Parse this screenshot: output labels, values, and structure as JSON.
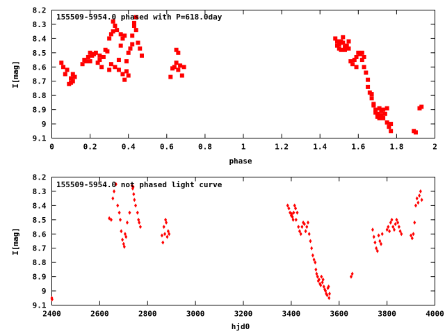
{
  "colors": {
    "points": "#ff0000",
    "axes": "#000000",
    "background": "#ffffff"
  },
  "chart_data": [
    {
      "type": "scatter",
      "title": "155509-5954.0 phased with P=618.0day",
      "xlabel": "phase",
      "ylabel": "I[mag]",
      "xlim": [
        0,
        2
      ],
      "ylim": [
        8.2,
        9.1
      ],
      "y_inverted": true,
      "marker": "filled-square",
      "x_ticks": [
        "0",
        "0.2",
        "0.4",
        "0.6",
        "0.8",
        "1",
        "1.2",
        "1.4",
        "1.6",
        "1.8",
        "2"
      ],
      "y_ticks": [
        "8.2",
        "8.3",
        "8.4",
        "8.5",
        "8.6",
        "8.7",
        "8.8",
        "8.9",
        "9",
        "9.1"
      ],
      "x": [
        0.05,
        0.06,
        0.07,
        0.08,
        0.09,
        0.1,
        0.1,
        0.11,
        0.11,
        0.12,
        0.16,
        0.17,
        0.18,
        0.19,
        0.2,
        0.2,
        0.21,
        0.22,
        0.23,
        0.24,
        0.25,
        0.25,
        0.26,
        0.27,
        0.28,
        0.29,
        0.3,
        0.3,
        0.31,
        0.31,
        0.32,
        0.32,
        0.33,
        0.33,
        0.34,
        0.35,
        0.35,
        0.36,
        0.36,
        0.37,
        0.37,
        0.38,
        0.38,
        0.39,
        0.39,
        0.4,
        0.4,
        0.41,
        0.42,
        0.42,
        0.43,
        0.43,
        0.44,
        0.44,
        0.45,
        0.46,
        0.47,
        0.62,
        0.63,
        0.64,
        0.65,
        0.65,
        0.66,
        0.66,
        0.67,
        0.68,
        0.69,
        1.48,
        1.49,
        1.49,
        1.5,
        1.5,
        1.51,
        1.51,
        1.52,
        1.52,
        1.53,
        1.53,
        1.54,
        1.55,
        1.55,
        1.56,
        1.57,
        1.58,
        1.59,
        1.59,
        1.6,
        1.61,
        1.62,
        1.62,
        1.63,
        1.63,
        1.64,
        1.65,
        1.65,
        1.66,
        1.67,
        1.67,
        1.68,
        1.68,
        1.69,
        1.69,
        1.7,
        1.7,
        1.71,
        1.71,
        1.72,
        1.72,
        1.73,
        1.73,
        1.74,
        1.75,
        1.75,
        1.76,
        1.77,
        1.77,
        1.89,
        1.9,
        1.92,
        1.93
      ],
      "y": [
        8.57,
        8.6,
        8.65,
        8.62,
        8.72,
        8.71,
        8.68,
        8.7,
        8.65,
        8.67,
        8.58,
        8.55,
        8.56,
        8.53,
        8.56,
        8.5,
        8.52,
        8.51,
        8.5,
        8.57,
        8.55,
        8.52,
        8.6,
        8.53,
        8.48,
        8.49,
        8.62,
        8.4,
        8.58,
        8.37,
        8.35,
        8.28,
        8.31,
        8.6,
        8.34,
        8.55,
        8.62,
        8.45,
        8.37,
        8.4,
        8.65,
        8.38,
        8.69,
        8.56,
        8.63,
        8.5,
        8.66,
        8.47,
        8.38,
        8.44,
        8.31,
        8.29,
        8.25,
        8.34,
        8.43,
        8.47,
        8.52,
        8.67,
        8.61,
        8.6,
        8.57,
        8.48,
        8.5,
        8.62,
        8.59,
        8.66,
        8.6,
        8.4,
        8.45,
        8.42,
        8.47,
        8.44,
        8.48,
        8.42,
        8.43,
        8.39,
        8.46,
        8.48,
        8.45,
        8.42,
        8.47,
        8.56,
        8.58,
        8.55,
        8.6,
        8.53,
        8.5,
        8.51,
        8.5,
        8.55,
        8.53,
        8.6,
        8.64,
        8.69,
        8.74,
        8.78,
        8.82,
        8.79,
        8.86,
        8.87,
        8.9,
        8.92,
        8.93,
        8.95,
        8.89,
        8.96,
        8.91,
        8.94,
        8.96,
        8.9,
        8.93,
        8.99,
        8.89,
        9.02,
        9.0,
        9.05,
        9.05,
        9.06,
        8.89,
        8.88
      ],
      "annotation": "155509-5954.0 phased with P=618.0day"
    },
    {
      "type": "scatter",
      "title": "155509-5954.0 not phased light curve",
      "xlabel": "hjd0",
      "ylabel": "I[mag]",
      "xlim": [
        2400,
        4000
      ],
      "ylim": [
        8.2,
        9.1
      ],
      "y_inverted": true,
      "marker": "small-diamond",
      "x_ticks": [
        "2400",
        "2600",
        "2800",
        "3000",
        "3200",
        "3400",
        "3600",
        "3800",
        "4000"
      ],
      "y_ticks": [
        "8.2",
        "8.3",
        "8.4",
        "8.5",
        "8.6",
        "8.7",
        "8.8",
        "8.9",
        "9",
        "9.1"
      ],
      "x": [
        2400,
        2401,
        2640,
        2648,
        2655,
        2660,
        2668,
        2675,
        2682,
        2686,
        2690,
        2695,
        2700,
        2703,
        2706,
        2710,
        2715,
        2725,
        2735,
        2738,
        2740,
        2742,
        2745,
        2750,
        2758,
        2762,
        2765,
        2770,
        2860,
        2864,
        2868,
        2872,
        2875,
        2878,
        2882,
        2886,
        2890,
        3385,
        3390,
        3395,
        3400,
        3402,
        3405,
        3408,
        3410,
        3414,
        3418,
        3420,
        3425,
        3430,
        3435,
        3440,
        3445,
        3450,
        3455,
        3460,
        3465,
        3470,
        3475,
        3480,
        3485,
        3490,
        3495,
        3500,
        3503,
        3506,
        3510,
        3513,
        3516,
        3520,
        3523,
        3526,
        3530,
        3533,
        3536,
        3540,
        3543,
        3546,
        3550,
        3553,
        3556,
        3558,
        3560,
        3650,
        3655,
        3740,
        3745,
        3750,
        3755,
        3760,
        3765,
        3770,
        3775,
        3780,
        3800,
        3805,
        3810,
        3815,
        3820,
        3825,
        3830,
        3835,
        3840,
        3845,
        3850,
        3855,
        3860,
        3900,
        3905,
        3910,
        3915,
        3920,
        3925,
        3930,
        3935,
        3940,
        3945
      ],
      "y": [
        9.05,
        9.06,
        8.49,
        8.5,
        8.35,
        8.3,
        8.25,
        8.4,
        8.45,
        8.5,
        8.58,
        8.64,
        8.67,
        8.69,
        8.6,
        8.62,
        8.52,
        8.45,
        8.26,
        8.28,
        8.27,
        8.32,
        8.36,
        8.4,
        8.45,
        8.5,
        8.52,
        8.55,
        8.61,
        8.66,
        8.55,
        8.6,
        8.5,
        8.52,
        8.62,
        8.58,
        8.6,
        8.4,
        8.42,
        8.45,
        8.47,
        8.46,
        8.48,
        8.5,
        8.45,
        8.4,
        8.42,
        8.5,
        8.45,
        8.55,
        8.58,
        8.6,
        8.55,
        8.52,
        8.53,
        8.58,
        8.55,
        8.52,
        8.6,
        8.65,
        8.7,
        8.75,
        8.78,
        8.8,
        8.85,
        8.88,
        8.9,
        8.93,
        8.92,
        8.95,
        8.96,
        8.9,
        8.94,
        8.92,
        8.97,
        8.99,
        9.0,
        9.02,
        9.03,
        8.98,
        8.97,
        9.05,
        9.02,
        8.9,
        8.88,
        8.57,
        8.62,
        8.66,
        8.7,
        8.72,
        8.61,
        8.65,
        8.67,
        8.6,
        8.57,
        8.55,
        8.58,
        8.52,
        8.5,
        8.55,
        8.57,
        8.53,
        8.5,
        8.52,
        8.55,
        8.58,
        8.6,
        8.61,
        8.63,
        8.6,
        8.52,
        8.4,
        8.35,
        8.38,
        8.33,
        8.3,
        8.36
      ],
      "annotation": "155509-5954.0 not phased light curve"
    }
  ]
}
